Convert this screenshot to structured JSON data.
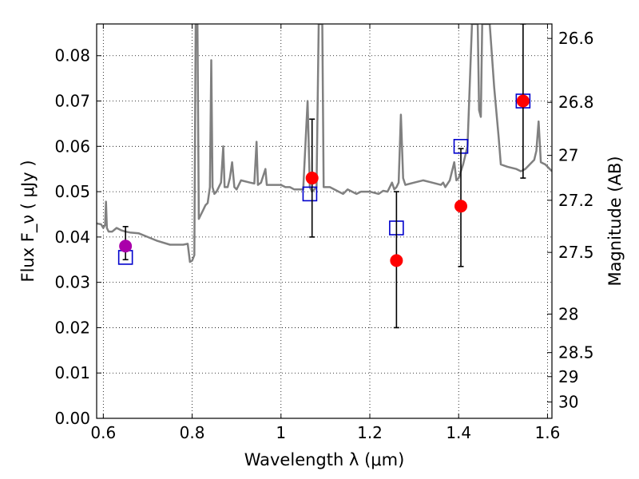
{
  "chart_data": {
    "type": "scatter",
    "title": "",
    "xlabel": "Wavelength  λ (μm)",
    "ylabel": "Flux  F_ν  ( μJy )",
    "ylabel_right": "Magnitude (AB)",
    "xlim": [
      0.585,
      1.61
    ],
    "ylim": [
      0.0,
      0.087
    ],
    "grid": true,
    "x_ticks": [
      0.6,
      0.8,
      1.0,
      1.2,
      1.4,
      1.6
    ],
    "x_tick_labels": [
      "0.6",
      "0.8",
      "1",
      "1.2",
      "1.4",
      "1.6"
    ],
    "y_ticks": [
      0.0,
      0.01,
      0.02,
      0.03,
      0.04,
      0.05,
      0.06,
      0.07,
      0.08
    ],
    "y_tick_labels": [
      "0.00",
      "0.01",
      "0.02",
      "0.03",
      "0.04",
      "0.05",
      "0.06",
      "0.07",
      "0.08"
    ],
    "right_ticks": [
      {
        "label": "26.6",
        "flux": 0.0838
      },
      {
        "label": "26.8",
        "flux": 0.0697
      },
      {
        "label": "27",
        "flux": 0.058
      },
      {
        "label": "27.2",
        "flux": 0.0481
      },
      {
        "label": "27.5",
        "flux": 0.0366
      },
      {
        "label": "28",
        "flux": 0.023
      },
      {
        "label": "28.5",
        "flux": 0.0145
      },
      {
        "label": "29",
        "flux": 0.0092
      },
      {
        "label": "30",
        "flux": 0.0036
      }
    ],
    "series": [
      {
        "name": "model-spectrum",
        "kind": "line",
        "color": "#808080",
        "points": [
          [
            0.585,
            0.043
          ],
          [
            0.595,
            0.0428
          ],
          [
            0.6,
            0.042
          ],
          [
            0.604,
            0.0427
          ],
          [
            0.606,
            0.0478
          ],
          [
            0.608,
            0.042
          ],
          [
            0.612,
            0.0412
          ],
          [
            0.62,
            0.0412
          ],
          [
            0.63,
            0.042
          ],
          [
            0.64,
            0.0415
          ],
          [
            0.65,
            0.0412
          ],
          [
            0.66,
            0.041
          ],
          [
            0.68,
            0.0408
          ],
          [
            0.7,
            0.04
          ],
          [
            0.72,
            0.0392
          ],
          [
            0.75,
            0.0383
          ],
          [
            0.78,
            0.0383
          ],
          [
            0.79,
            0.0385
          ],
          [
            0.795,
            0.0345
          ],
          [
            0.8,
            0.0348
          ],
          [
            0.805,
            0.036
          ],
          [
            0.808,
            0.087
          ],
          [
            0.812,
            0.087
          ],
          [
            0.815,
            0.044
          ],
          [
            0.82,
            0.045
          ],
          [
            0.825,
            0.046
          ],
          [
            0.83,
            0.047
          ],
          [
            0.835,
            0.0475
          ],
          [
            0.84,
            0.051
          ],
          [
            0.843,
            0.079
          ],
          [
            0.846,
            0.051
          ],
          [
            0.85,
            0.0495
          ],
          [
            0.855,
            0.05
          ],
          [
            0.86,
            0.051
          ],
          [
            0.865,
            0.052
          ],
          [
            0.87,
            0.06
          ],
          [
            0.873,
            0.051
          ],
          [
            0.88,
            0.051
          ],
          [
            0.885,
            0.053
          ],
          [
            0.89,
            0.0565
          ],
          [
            0.895,
            0.051
          ],
          [
            0.9,
            0.0505
          ],
          [
            0.91,
            0.0525
          ],
          [
            0.93,
            0.052
          ],
          [
            0.94,
            0.0518
          ],
          [
            0.945,
            0.061
          ],
          [
            0.948,
            0.0515
          ],
          [
            0.955,
            0.052
          ],
          [
            0.965,
            0.055
          ],
          [
            0.968,
            0.0515
          ],
          [
            0.98,
            0.0515
          ],
          [
            1.0,
            0.0515
          ],
          [
            1.01,
            0.051
          ],
          [
            1.02,
            0.051
          ],
          [
            1.03,
            0.0505
          ],
          [
            1.05,
            0.0505
          ],
          [
            1.06,
            0.07
          ],
          [
            1.065,
            0.051
          ],
          [
            1.07,
            0.05
          ],
          [
            1.08,
            0.051
          ],
          [
            1.085,
            0.087
          ],
          [
            1.093,
            0.087
          ],
          [
            1.096,
            0.051
          ],
          [
            1.11,
            0.051
          ],
          [
            1.13,
            0.05
          ],
          [
            1.14,
            0.0495
          ],
          [
            1.15,
            0.0505
          ],
          [
            1.17,
            0.0495
          ],
          [
            1.18,
            0.05
          ],
          [
            1.2,
            0.05
          ],
          [
            1.22,
            0.0495
          ],
          [
            1.23,
            0.0502
          ],
          [
            1.24,
            0.05
          ],
          [
            1.25,
            0.052
          ],
          [
            1.255,
            0.0505
          ],
          [
            1.26,
            0.051
          ],
          [
            1.265,
            0.052
          ],
          [
            1.27,
            0.067
          ],
          [
            1.275,
            0.053
          ],
          [
            1.28,
            0.0515
          ],
          [
            1.3,
            0.052
          ],
          [
            1.32,
            0.0525
          ],
          [
            1.34,
            0.052
          ],
          [
            1.36,
            0.0515
          ],
          [
            1.365,
            0.052
          ],
          [
            1.37,
            0.051
          ],
          [
            1.38,
            0.0525
          ],
          [
            1.39,
            0.0565
          ],
          [
            1.395,
            0.0525
          ],
          [
            1.4,
            0.053
          ],
          [
            1.41,
            0.056
          ],
          [
            1.42,
            0.06
          ],
          [
            1.43,
            0.087
          ],
          [
            1.443,
            0.087
          ],
          [
            1.446,
            0.068
          ],
          [
            1.45,
            0.0665
          ],
          [
            1.453,
            0.087
          ],
          [
            1.47,
            0.087
          ],
          [
            1.48,
            0.073
          ],
          [
            1.49,
            0.062
          ],
          [
            1.495,
            0.056
          ],
          [
            1.51,
            0.0555
          ],
          [
            1.53,
            0.055
          ],
          [
            1.54,
            0.0545
          ],
          [
            1.55,
            0.055
          ],
          [
            1.56,
            0.056
          ],
          [
            1.57,
            0.057
          ],
          [
            1.575,
            0.059
          ],
          [
            1.58,
            0.0655
          ],
          [
            1.585,
            0.0565
          ],
          [
            1.595,
            0.056
          ],
          [
            1.61,
            0.0545
          ]
        ]
      },
      {
        "name": "model-band-flux",
        "kind": "open-square",
        "color": "#0000cc",
        "points": [
          [
            0.65,
            0.0355
          ],
          [
            1.065,
            0.0495
          ],
          [
            1.26,
            0.042
          ],
          [
            1.405,
            0.06
          ],
          [
            1.545,
            0.07
          ]
        ]
      },
      {
        "name": "observed-flux",
        "kind": "filled-circle",
        "color": "#ff0000",
        "points": [
          [
            1.07,
            0.053
          ],
          [
            1.26,
            0.0348
          ],
          [
            1.405,
            0.0468
          ],
          [
            1.545,
            0.07
          ]
        ],
        "errors": [
          [
            0.04,
            0.066
          ],
          [
            0.02,
            0.05
          ],
          [
            0.0335,
            0.0595
          ],
          [
            0.053,
            0.087
          ]
        ]
      },
      {
        "name": "observed-flux-optical",
        "kind": "filled-circle",
        "color": "#aa00aa",
        "points": [
          [
            0.65,
            0.038
          ]
        ],
        "errors": [
          [
            0.035,
            0.0423
          ]
        ]
      }
    ]
  }
}
